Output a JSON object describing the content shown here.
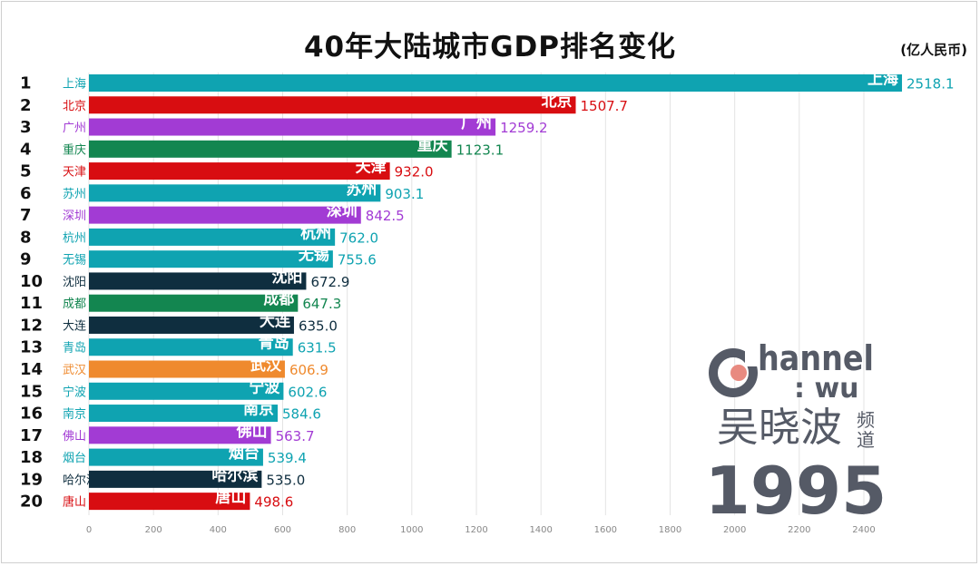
{
  "title": "40年大陆城市GDP排名变化",
  "unit": "(亿人民币)",
  "year": "1995",
  "logo": {
    "brand": "hannel",
    "sub": ": wu",
    "cn": "吴晓波",
    "pindao_1": "频",
    "pindao_2": "道"
  },
  "colors": {
    "teal": "#0fa3b1",
    "red": "#d80d11",
    "purple": "#a23bd4",
    "green": "#138650",
    "navy": "#0f2e3f",
    "orange": "#ef8a2e",
    "logo_gray": "#555a66",
    "logo_dot": "#e88a80"
  },
  "chart_data": {
    "type": "bar",
    "orientation": "horizontal",
    "title": "40年大陆城市GDP排名变化",
    "xlabel": "",
    "ylabel": "",
    "xlim": [
      0,
      2400
    ],
    "xticks": [
      0,
      200,
      400,
      600,
      800,
      1000,
      1200,
      1400,
      1600,
      1800,
      2000,
      2200,
      2400
    ],
    "series": [
      {
        "rank": "1",
        "name": "上海",
        "value": 2518.1,
        "label": "2518.1",
        "color": "teal"
      },
      {
        "rank": "2",
        "name": "北京",
        "value": 1507.7,
        "label": "1507.7",
        "color": "red"
      },
      {
        "rank": "3",
        "name": "广州",
        "value": 1259.2,
        "label": "1259.2",
        "color": "purple"
      },
      {
        "rank": "4",
        "name": "重庆",
        "value": 1123.1,
        "label": "1123.1",
        "color": "green"
      },
      {
        "rank": "5",
        "name": "天津",
        "value": 932.0,
        "label": "932.0",
        "color": "red"
      },
      {
        "rank": "6",
        "name": "苏州",
        "value": 903.1,
        "label": "903.1",
        "color": "teal"
      },
      {
        "rank": "7",
        "name": "深圳",
        "value": 842.5,
        "label": "842.5",
        "color": "purple"
      },
      {
        "rank": "8",
        "name": "杭州",
        "value": 762.0,
        "label": "762.0",
        "color": "teal"
      },
      {
        "rank": "9",
        "name": "无锡",
        "value": 755.6,
        "label": "755.6",
        "color": "teal"
      },
      {
        "rank": "10",
        "name": "沈阳",
        "value": 672.9,
        "label": "672.9",
        "color": "navy"
      },
      {
        "rank": "11",
        "name": "成都",
        "value": 647.3,
        "label": "647.3",
        "color": "green"
      },
      {
        "rank": "12",
        "name": "大连",
        "value": 635.0,
        "label": "635.0",
        "color": "navy"
      },
      {
        "rank": "13",
        "name": "青岛",
        "value": 631.5,
        "label": "631.5",
        "color": "teal"
      },
      {
        "rank": "14",
        "name": "武汉",
        "value": 606.9,
        "label": "606.9",
        "color": "orange"
      },
      {
        "rank": "15",
        "name": "宁波",
        "value": 602.6,
        "label": "602.6",
        "color": "teal"
      },
      {
        "rank": "16",
        "name": "南京",
        "value": 584.6,
        "label": "584.6",
        "color": "teal"
      },
      {
        "rank": "17",
        "name": "佛山",
        "value": 563.7,
        "label": "563.7",
        "color": "purple"
      },
      {
        "rank": "18",
        "name": "烟台",
        "value": 539.4,
        "label": "539.4",
        "color": "teal"
      },
      {
        "rank": "19",
        "name": "哈尔滨",
        "value": 535.0,
        "label": "535.0",
        "color": "navy"
      },
      {
        "rank": "20",
        "name": "唐山",
        "value": 498.6,
        "label": "498.6",
        "color": "red"
      }
    ]
  }
}
